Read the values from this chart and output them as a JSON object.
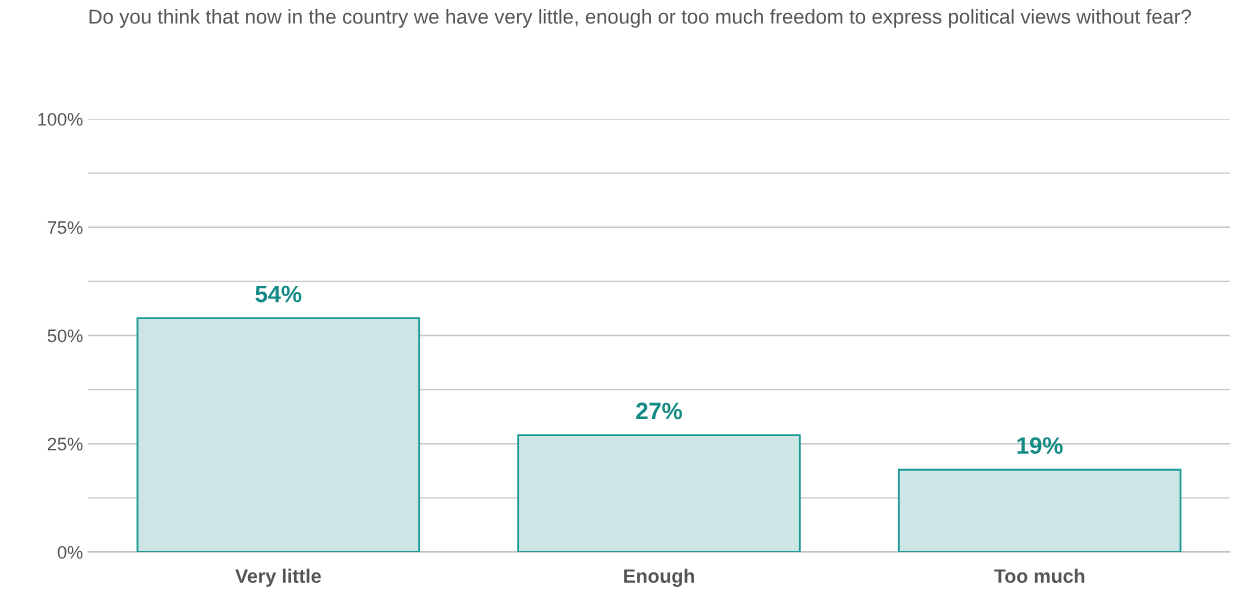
{
  "chart_data": {
    "type": "bar",
    "title": "Do you think that now in the country we have very little, enough or too much freedom to express political views without fear?",
    "categories": [
      "Very little",
      "Enough",
      "Too much"
    ],
    "values": [
      54,
      27,
      19
    ],
    "value_labels": [
      "54%",
      "27%",
      "19%"
    ],
    "color": "#cde6e5",
    "ylim": [
      0,
      100
    ],
    "yticks": [
      {
        "value": 0,
        "label": "0%"
      },
      {
        "value": 12.5,
        "label": null
      },
      {
        "value": 25,
        "label": "25%"
      },
      {
        "value": 37.5,
        "label": null
      },
      {
        "value": 50,
        "label": "50%"
      },
      {
        "value": 62.5,
        "label": null
      },
      {
        "value": 75,
        "label": "75%"
      },
      {
        "value": 87.5,
        "label": null
      },
      {
        "value": 100,
        "label": "100%"
      }
    ],
    "grid": "y",
    "legend": false
  }
}
